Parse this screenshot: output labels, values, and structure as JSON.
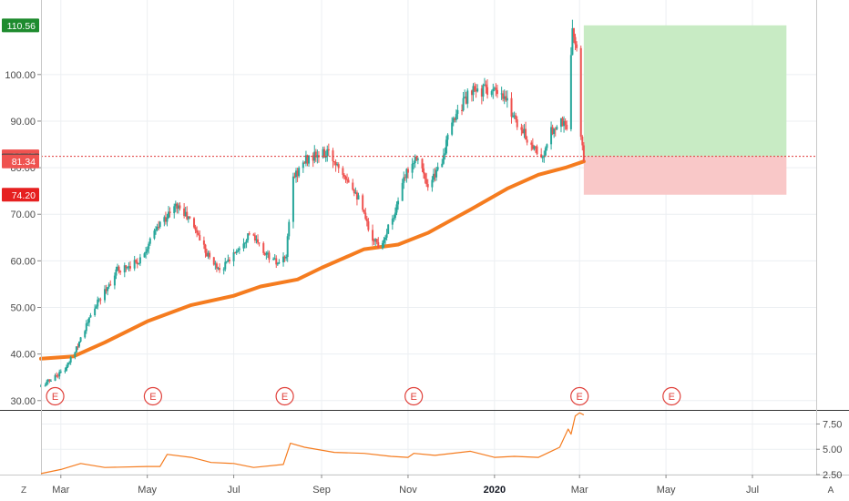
{
  "chart_data": [
    {
      "type": "candlestick",
      "title": "",
      "y_axis": {
        "side": "left",
        "range": [
          28,
          116
        ],
        "ticks": [
          "30.00",
          "40.00",
          "50.00",
          "60.00",
          "70.00",
          "80.00",
          "90.00",
          "100.00"
        ]
      },
      "x_axis": {
        "ticks": [
          "Mar",
          "May",
          "Jul",
          "Sep",
          "Nov",
          "2020",
          "Mar",
          "May",
          "Jul"
        ],
        "bold_ticks": [
          "2020"
        ],
        "tick_dates": [
          "2019-03-01",
          "2019-05-01",
          "2019-07-01",
          "2019-09-01",
          "2019-11-01",
          "2020-01-01",
          "2020-03-01",
          "2020-05-01",
          "2020-07-01"
        ],
        "date_range": [
          "2019-02-15",
          "2020-08-15"
        ]
      },
      "price_path": [
        [
          "2019-02-15",
          33
        ],
        [
          "2019-03-05",
          37
        ],
        [
          "2019-03-25",
          50
        ],
        [
          "2019-04-10",
          58
        ],
        [
          "2019-04-25",
          60
        ],
        [
          "2019-05-10",
          68
        ],
        [
          "2019-05-22",
          72
        ],
        [
          "2019-06-02",
          68
        ],
        [
          "2019-06-15",
          60
        ],
        [
          "2019-06-22",
          58
        ],
        [
          "2019-07-02",
          62
        ],
        [
          "2019-07-12",
          66
        ],
        [
          "2019-07-22",
          62
        ],
        [
          "2019-08-02",
          59
        ],
        [
          "2019-08-07",
          61
        ],
        [
          "2019-08-12",
          78
        ],
        [
          "2019-08-22",
          82
        ],
        [
          "2019-09-05",
          83
        ],
        [
          "2019-09-15",
          80
        ],
        [
          "2019-09-25",
          75
        ],
        [
          "2019-10-05",
          66
        ],
        [
          "2019-10-12",
          63
        ],
        [
          "2019-10-22",
          70
        ],
        [
          "2019-11-01",
          80
        ],
        [
          "2019-11-08",
          83
        ],
        [
          "2019-11-15",
          75
        ],
        [
          "2019-11-25",
          82
        ],
        [
          "2019-12-05",
          92
        ],
        [
          "2019-12-15",
          96
        ],
        [
          "2019-12-28",
          97
        ],
        [
          "2020-01-10",
          94
        ],
        [
          "2020-01-20",
          88
        ],
        [
          "2020-01-30",
          84
        ],
        [
          "2020-02-05",
          82
        ],
        [
          "2020-02-10",
          88
        ],
        [
          "2020-02-16",
          90
        ],
        [
          "2020-02-22",
          89
        ],
        [
          "2020-02-25",
          110
        ],
        [
          "2020-02-28",
          105
        ],
        [
          "2020-03-01",
          88
        ],
        [
          "2020-03-04",
          81.56
        ]
      ],
      "moving_average": {
        "color": "#f57c1f",
        "points": [
          [
            "2019-02-15",
            39
          ],
          [
            "2019-03-10",
            39.5
          ],
          [
            "2019-04-01",
            42.5
          ],
          [
            "2019-05-01",
            47
          ],
          [
            "2019-06-01",
            50.5
          ],
          [
            "2019-07-01",
            52.5
          ],
          [
            "2019-07-20",
            54.5
          ],
          [
            "2019-08-15",
            56
          ],
          [
            "2019-09-01",
            58.5
          ],
          [
            "2019-10-01",
            62.5
          ],
          [
            "2019-10-25",
            63.5
          ],
          [
            "2019-11-15",
            66
          ],
          [
            "2019-12-15",
            71
          ],
          [
            "2020-01-10",
            75.5
          ],
          [
            "2020-02-01",
            78.5
          ],
          [
            "2020-02-20",
            80
          ],
          [
            "2020-03-04",
            81.34
          ]
        ]
      },
      "current_price": 81.56,
      "price_labels": [
        {
          "text": "110.56",
          "value": 110.56,
          "color": "#1e8b2e"
        },
        {
          "text": "82.45",
          "value": 82.45,
          "color": "#ef5350"
        },
        {
          "text": "81.56",
          "value": 81.56,
          "color": "#4a4a4a"
        },
        {
          "text": "81.34",
          "value": 81.34,
          "color": "#ef5350"
        },
        {
          "text": "74.20",
          "value": 74.2,
          "color": "#e62020"
        }
      ],
      "position": {
        "start": "2020-03-04",
        "end": "2020-07-25",
        "entry": 82.45,
        "target": 110.56,
        "stop": 74.2,
        "profit_color": "#c8ebc4",
        "loss_color": "#f9c8c8"
      },
      "earnings_markers": {
        "label": "E",
        "dates": [
          "2019-02-25",
          "2019-05-05",
          "2019-08-06",
          "2019-11-05",
          "2020-03-01",
          "2020-05-05"
        ]
      },
      "colors": {
        "up": "#26a69a",
        "down": "#ef5350"
      }
    },
    {
      "type": "line",
      "title": "",
      "y_axis": {
        "side": "right",
        "range": [
          2.5,
          8.8
        ],
        "ticks": [
          "7.50",
          "5.00",
          "2.50"
        ]
      },
      "series": [
        {
          "color": "#f57c1f",
          "points": [
            [
              "2019-02-15",
              2.6
            ],
            [
              "2019-03-01",
              3.0
            ],
            [
              "2019-03-15",
              3.6
            ],
            [
              "2019-04-01",
              3.2
            ],
            [
              "2019-05-01",
              3.3
            ],
            [
              "2019-05-10",
              3.3
            ],
            [
              "2019-05-15",
              4.5
            ],
            [
              "2019-06-01",
              4.2
            ],
            [
              "2019-06-15",
              3.7
            ],
            [
              "2019-07-01",
              3.6
            ],
            [
              "2019-07-15",
              3.2
            ],
            [
              "2019-08-05",
              3.5
            ],
            [
              "2019-08-10",
              5.6
            ],
            [
              "2019-08-20",
              5.2
            ],
            [
              "2019-09-10",
              4.7
            ],
            [
              "2019-10-01",
              4.6
            ],
            [
              "2019-10-20",
              4.3
            ],
            [
              "2019-11-01",
              4.2
            ],
            [
              "2019-11-05",
              4.6
            ],
            [
              "2019-11-20",
              4.4
            ],
            [
              "2019-12-15",
              4.8
            ],
            [
              "2020-01-01",
              4.2
            ],
            [
              "2020-01-15",
              4.3
            ],
            [
              "2020-02-01",
              4.2
            ],
            [
              "2020-02-10",
              4.8
            ],
            [
              "2020-02-16",
              5.2
            ],
            [
              "2020-02-22",
              7.0
            ],
            [
              "2020-02-24",
              6.5
            ],
            [
              "2020-02-27",
              8.3
            ],
            [
              "2020-03-01",
              8.6
            ],
            [
              "2020-03-04",
              8.4
            ]
          ]
        }
      ]
    }
  ],
  "controls": {
    "left_corner": "Z",
    "right_corner": "A"
  }
}
